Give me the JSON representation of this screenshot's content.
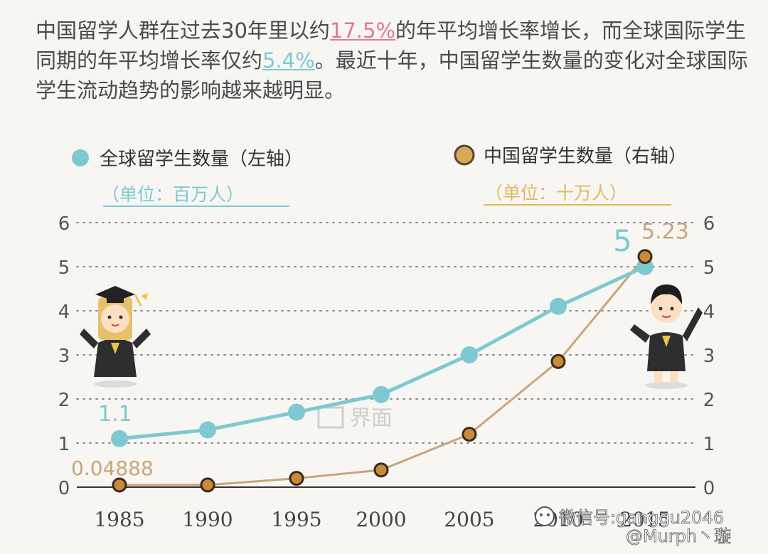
{
  "intro": {
    "part1": "中国留学人群在过去30年里以约",
    "rate_china": "17.5%",
    "part2": "的年平均增长率增长，而全球国际学生同期的年平均增长率仅约",
    "rate_global": "5.4%",
    "part3": "。最近十年，中国留学生数量的变化对全球国际学生流动趋势的影响越来越明显。"
  },
  "colors": {
    "global": "#7ec9d1",
    "china": "#c9a57a",
    "china_marker": "#c98a3a"
  },
  "chart_data": {
    "type": "line",
    "categories": [
      "1985",
      "1990",
      "1995",
      "2000",
      "2005",
      "2010",
      "2015"
    ],
    "series": [
      {
        "name": "全球留学生数量（左轴）",
        "unit": "（单位：百万人）",
        "axis": "left",
        "values": [
          1.1,
          1.3,
          1.7,
          2.1,
          3.0,
          4.1,
          5.0
        ]
      },
      {
        "name": "中国留学生数量（右轴）",
        "unit": "（单位：十万人）",
        "axis": "right",
        "values": [
          0.04888,
          0.05,
          0.2,
          0.39,
          1.2,
          2.85,
          5.23
        ]
      }
    ],
    "y_left": {
      "min": 0,
      "max": 6,
      "ticks": [
        0,
        1,
        2,
        3,
        4,
        5,
        6
      ]
    },
    "y_right": {
      "min": 0,
      "max": 6,
      "ticks": [
        0,
        1,
        2,
        3,
        4,
        5,
        6
      ]
    },
    "data_labels": [
      {
        "series": 0,
        "index": 0,
        "text": "1.1"
      },
      {
        "series": 0,
        "index": 6,
        "text": "5"
      },
      {
        "series": 1,
        "index": 0,
        "text": "0.04888"
      },
      {
        "series": 1,
        "index": 6,
        "text": "5.23"
      }
    ],
    "grid": true,
    "legend_position": "top"
  },
  "watermarks": {
    "logo": "界面",
    "wechat": "微信号:ganggu2046",
    "weibo": "@Murph丶璇"
  }
}
